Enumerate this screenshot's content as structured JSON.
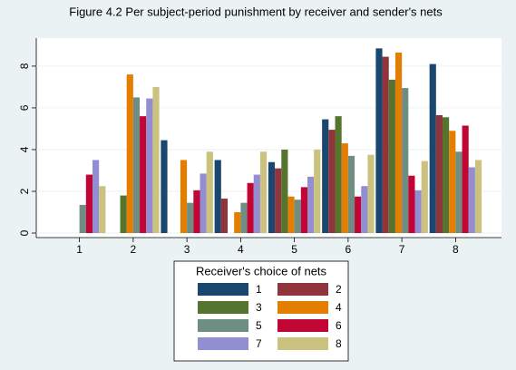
{
  "chart_data": {
    "type": "bar",
    "title": "Figure 4.2 Per subject-period punishment by receiver and sender's nets",
    "categories": [
      "1",
      "2",
      "3",
      "4",
      "5",
      "6",
      "7",
      "8"
    ],
    "legend_title": "Receiver's choice of nets",
    "series": [
      {
        "name": "1",
        "color": "#1a476f",
        "values": [
          0,
          0,
          4.45,
          3.5,
          3.4,
          5.45,
          8.85,
          8.1
        ]
      },
      {
        "name": "2",
        "color": "#90353b",
        "values": [
          0,
          0,
          0,
          1.65,
          3.1,
          4.95,
          8.45,
          5.65
        ]
      },
      {
        "name": "3",
        "color": "#55752f",
        "values": [
          0,
          1.8,
          0,
          0,
          4.0,
          5.6,
          7.35,
          5.55
        ]
      },
      {
        "name": "4",
        "color": "#e37e00",
        "values": [
          0,
          7.6,
          3.5,
          1.0,
          1.75,
          4.3,
          8.65,
          4.9
        ]
      },
      {
        "name": "5",
        "color": "#6e8e84",
        "values": [
          1.35,
          6.5,
          1.45,
          1.45,
          1.6,
          3.7,
          6.95,
          3.9
        ]
      },
      {
        "name": "6",
        "color": "#c10534",
        "values": [
          2.8,
          5.6,
          2.05,
          2.4,
          2.2,
          1.75,
          2.75,
          5.15
        ]
      },
      {
        "name": "7",
        "color": "#938dd2",
        "values": [
          3.5,
          6.45,
          2.85,
          2.8,
          2.7,
          2.25,
          2.05,
          3.15
        ]
      },
      {
        "name": "8",
        "color": "#cac27e",
        "values": [
          2.25,
          7.0,
          3.9,
          3.9,
          4.0,
          3.75,
          3.45,
          3.5
        ]
      }
    ],
    "ylim": [
      0,
      9.3
    ],
    "yticks": [
      0,
      2,
      4,
      6,
      8
    ],
    "grid": true
  }
}
